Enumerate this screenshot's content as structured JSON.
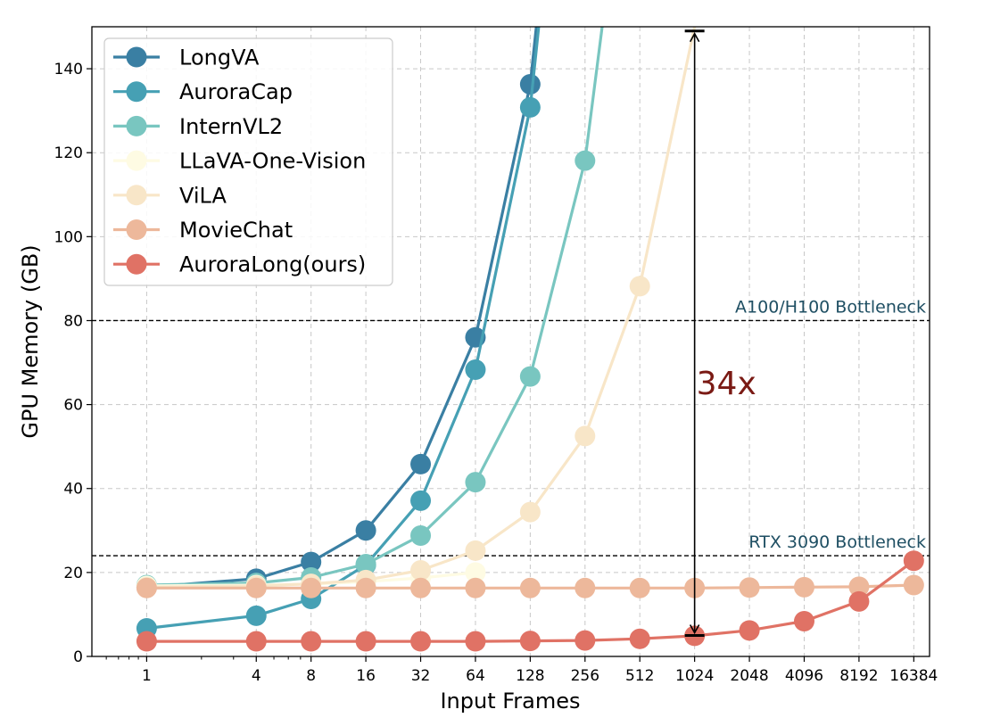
{
  "chart_data": {
    "type": "line",
    "title": "",
    "xlabel": "Input Frames",
    "ylabel": "GPU Memory (GB)",
    "x_scale": "log2",
    "x_ticks": [
      1,
      4,
      8,
      16,
      32,
      64,
      128,
      256,
      512,
      1024,
      2048,
      4096,
      8192,
      16384
    ],
    "x_tick_labels": [
      "1",
      "4",
      "8",
      "16",
      "32",
      "64",
      "128",
      "256",
      "512",
      "1024",
      "2048",
      "4096",
      "8192",
      "16384"
    ],
    "xlim": [
      0.5,
      20000
    ],
    "ylim": [
      0,
      150
    ],
    "y_ticks": [
      0,
      20,
      40,
      60,
      80,
      100,
      120,
      140
    ],
    "y_tick_labels": [
      "0",
      "20",
      "40",
      "60",
      "80",
      "100",
      "120",
      "140"
    ],
    "grid": true,
    "legend_position": "top-left",
    "series": [
      {
        "name": "LongVA",
        "color": "#3a7fa3",
        "x": [
          1,
          4,
          8,
          16,
          32,
          64,
          128,
          256
        ],
        "y": [
          16.5,
          18.5,
          22.5,
          30,
          45.8,
          76,
          136.3,
          260
        ],
        "visible_markers": [
          true,
          true,
          true,
          true,
          true,
          true,
          true,
          false
        ]
      },
      {
        "name": "AuroraCap",
        "color": "#46a0b4",
        "x": [
          1,
          4,
          8,
          16,
          32,
          64,
          128,
          256
        ],
        "y": [
          6.7,
          9.7,
          13.7,
          21.8,
          37.1,
          68.3,
          130.8,
          255
        ],
        "visible_markers": [
          true,
          true,
          true,
          true,
          true,
          true,
          true,
          false
        ]
      },
      {
        "name": "InternVL2",
        "color": "#79c6c0",
        "x": [
          1,
          4,
          8,
          16,
          32,
          64,
          128,
          256,
          512
        ],
        "y": [
          17,
          17.5,
          18.8,
          22,
          28.8,
          41.5,
          66.7,
          118.1,
          220
        ],
        "visible_markers": [
          true,
          true,
          true,
          true,
          true,
          true,
          true,
          true,
          false
        ]
      },
      {
        "name": "LLaVA-One-Vision",
        "color": "#fefbe3",
        "x": [
          1,
          4,
          8,
          16,
          32,
          64
        ],
        "y": [
          16.8,
          17,
          17.2,
          17.8,
          18.7,
          20
        ],
        "visible_markers": [
          true,
          true,
          true,
          true,
          true,
          true
        ]
      },
      {
        "name": "ViLA",
        "color": "#f8e6c8",
        "x": [
          1,
          4,
          8,
          16,
          32,
          64,
          128,
          256,
          512,
          1024
        ],
        "y": [
          16.5,
          16.8,
          17.3,
          18.2,
          20.5,
          25.2,
          34.4,
          52.5,
          88.2,
          150
        ],
        "visible_markers": [
          true,
          true,
          true,
          true,
          true,
          true,
          true,
          true,
          true,
          false
        ]
      },
      {
        "name": "MovieChat",
        "color": "#edb89b",
        "x": [
          1,
          4,
          8,
          16,
          32,
          64,
          128,
          256,
          512,
          1024,
          2048,
          4096,
          8192,
          16384
        ],
        "y": [
          16.3,
          16.3,
          16.3,
          16.3,
          16.3,
          16.3,
          16.3,
          16.3,
          16.3,
          16.3,
          16.4,
          16.5,
          16.6,
          17
        ],
        "visible_markers": [
          true,
          true,
          true,
          true,
          true,
          true,
          true,
          true,
          true,
          true,
          true,
          true,
          true,
          true
        ]
      },
      {
        "name": "AuroraLong(ours)",
        "color": "#e07265",
        "x": [
          1,
          4,
          8,
          16,
          32,
          64,
          128,
          256,
          512,
          1024,
          2048,
          4096,
          8192,
          16384
        ],
        "y": [
          3.6,
          3.6,
          3.6,
          3.6,
          3.6,
          3.6,
          3.7,
          3.8,
          4.2,
          4.9,
          6.2,
          8.4,
          13.1,
          22.8
        ],
        "visible_markers": [
          true,
          true,
          true,
          true,
          true,
          true,
          true,
          true,
          true,
          true,
          true,
          true,
          true,
          true
        ]
      }
    ],
    "reference_lines": [
      {
        "label": "A100/H100 Bottleneck",
        "y": 80,
        "color": "#1f4f63"
      },
      {
        "label": "RTX 3090 Bottleneck",
        "y": 24,
        "color": "#1f4f63"
      }
    ],
    "annotation": {
      "label": "34x",
      "x": 1024,
      "y_from": 5,
      "y_to": 149,
      "color": "#7a1a14"
    }
  }
}
